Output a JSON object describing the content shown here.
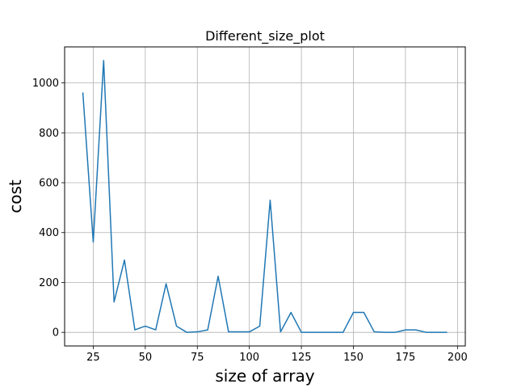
{
  "chart_data": {
    "type": "line",
    "title": "Different_size_plot",
    "xlabel": "size of array",
    "ylabel": "cost",
    "xlim": [
      11.25,
      203.75
    ],
    "ylim": [
      -54.5,
      1144.5
    ],
    "grid": true,
    "x_ticks": [
      25,
      50,
      75,
      100,
      125,
      150,
      175,
      200
    ],
    "y_ticks": [
      0,
      200,
      400,
      600,
      800,
      1000
    ],
    "series": [
      {
        "color": "#1f77b4",
        "x": [
          20,
          25,
          30,
          35,
          40,
          45,
          50,
          55,
          60,
          65,
          70,
          75,
          80,
          85,
          90,
          95,
          100,
          105,
          110,
          115,
          120,
          125,
          130,
          135,
          140,
          145,
          150,
          155,
          160,
          165,
          170,
          175,
          180,
          185,
          190,
          195
        ],
        "y": [
          962,
          362,
          1090,
          122,
          290,
          10,
          25,
          10,
          195,
          25,
          0,
          2,
          10,
          225,
          2,
          2,
          2,
          25,
          530,
          2,
          80,
          0,
          0,
          0,
          0,
          0,
          80,
          80,
          2,
          0,
          0,
          10,
          10,
          0,
          0,
          0
        ]
      }
    ]
  }
}
